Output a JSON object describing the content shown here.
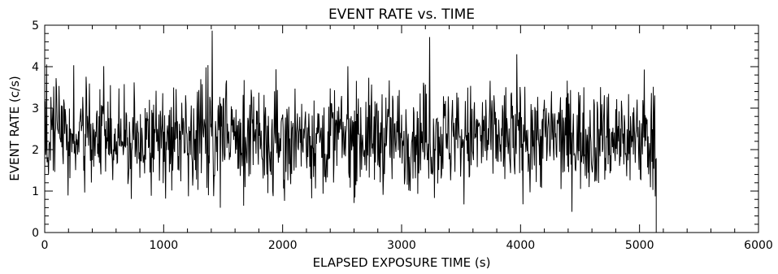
{
  "chart_data": {
    "type": "line",
    "title": "EVENT RATE vs. TIME",
    "xlabel": "ELAPSED EXPOSURE TIME (s)",
    "ylabel": "EVENT RATE (c/s)",
    "xlim": [
      0,
      6000
    ],
    "ylim": [
      0,
      5
    ],
    "x_ticks": [
      "0",
      "1000",
      "2000",
      "3000",
      "4000",
      "5000",
      "6000"
    ],
    "y_ticks": [
      "0",
      "1",
      "2",
      "3",
      "4",
      "5"
    ],
    "grid": false,
    "line_color": "#000000",
    "background_color": "#ffffff",
    "series": [
      {
        "name": "",
        "description": "noisy light curve, ~2.3 c/s mean, sampled every ~4 s from 0 to ~5140 s",
        "x_start": 0,
        "x_end": 5140,
        "x_step": 4,
        "mean": 2.3,
        "min_observed": 0.5,
        "max_observed": 4.9,
        "final_drop_to": 0
      }
    ]
  }
}
